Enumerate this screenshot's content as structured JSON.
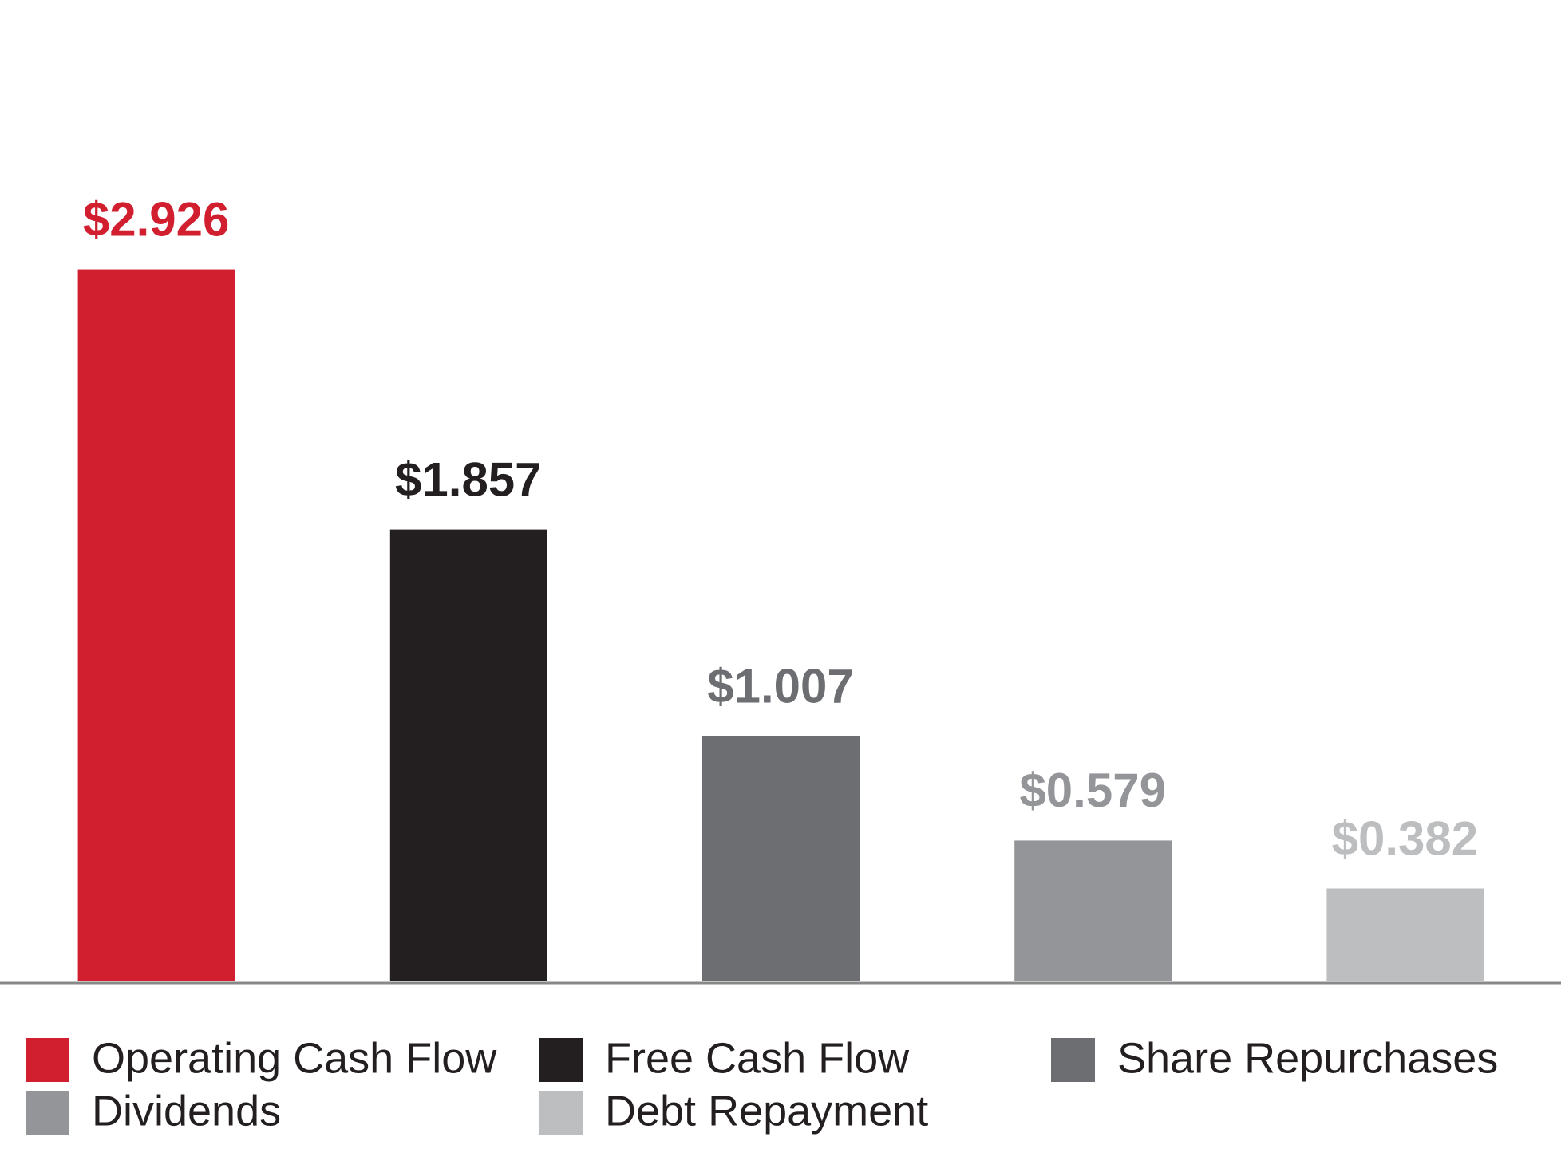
{
  "chart_data": {
    "type": "bar",
    "categories": [
      "Operating Cash Flow",
      "Free Cash Flow",
      "Share Repurchases",
      "Dividends",
      "Debt Repayment"
    ],
    "values": [
      2.926,
      1.857,
      1.007,
      0.579,
      0.382
    ],
    "value_labels": [
      "$2.926",
      "$1.857",
      "$1.007",
      "$0.579",
      "$0.382"
    ],
    "colors": [
      "#d11f2f",
      "#231f20",
      "#6d6e71",
      "#939598",
      "#bcbec0"
    ],
    "ylim": [
      0,
      4
    ]
  }
}
